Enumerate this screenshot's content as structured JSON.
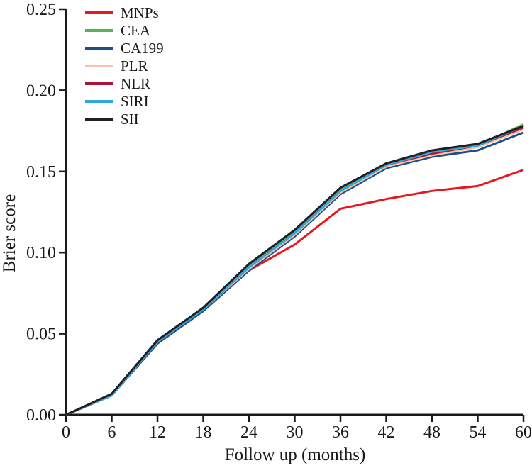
{
  "figure": {
    "background_color": "#ffffff",
    "axis_color": "#1a1a1a"
  },
  "chart_data": {
    "type": "line",
    "title": "",
    "xlabel": "Follow up (months)",
    "ylabel": "Brier score",
    "xlim": [
      0,
      60
    ],
    "ylim": [
      0,
      0.25
    ],
    "grid": false,
    "legend_position": "top-left",
    "x_ticks": [
      0,
      6,
      12,
      18,
      24,
      30,
      36,
      42,
      48,
      54,
      60
    ],
    "x_tick_labels": [
      "0",
      "6",
      "12",
      "18",
      "24",
      "30",
      "36",
      "42",
      "48",
      "54",
      "60"
    ],
    "y_ticks": [
      0.0,
      0.05,
      0.1,
      0.15,
      0.2,
      0.25
    ],
    "y_tick_labels": [
      "0.00",
      "0.05",
      "0.10",
      "0.15",
      "0.20",
      "0.25"
    ],
    "x": [
      0,
      6,
      12,
      18,
      24,
      30,
      36,
      42,
      48,
      54,
      60
    ],
    "series": [
      {
        "name": "MNPs",
        "color": "#e9161c",
        "values": [
          0,
          0.012,
          0.044,
          0.064,
          0.089,
          0.105,
          0.127,
          0.133,
          0.138,
          0.141,
          0.151
        ]
      },
      {
        "name": "CEA",
        "color": "#56b456",
        "values": [
          0,
          0.012,
          0.045,
          0.066,
          0.092,
          0.113,
          0.139,
          0.155,
          0.162,
          0.166,
          0.179
        ]
      },
      {
        "name": "CA199",
        "color": "#1b4e8e",
        "values": [
          0,
          0.012,
          0.044,
          0.064,
          0.089,
          0.11,
          0.136,
          0.152,
          0.159,
          0.163,
          0.174
        ]
      },
      {
        "name": "PLR",
        "color": "#f8c3a3",
        "values": [
          0,
          0.012,
          0.045,
          0.065,
          0.09,
          0.111,
          0.137,
          0.153,
          0.16,
          0.165,
          0.176
        ]
      },
      {
        "name": "NLR",
        "color": "#ae1237",
        "values": [
          0,
          0.012,
          0.045,
          0.065,
          0.091,
          0.112,
          0.138,
          0.154,
          0.161,
          0.166,
          0.177
        ]
      },
      {
        "name": "SIRI",
        "color": "#2fa9da",
        "values": [
          0,
          0.012,
          0.045,
          0.065,
          0.091,
          0.112,
          0.138,
          0.154,
          0.162,
          0.166,
          0.178
        ]
      },
      {
        "name": "SII",
        "color": "#221e1f",
        "values": [
          0,
          0.013,
          0.046,
          0.066,
          0.093,
          0.114,
          0.14,
          0.155,
          0.163,
          0.167,
          0.178
        ]
      }
    ]
  }
}
